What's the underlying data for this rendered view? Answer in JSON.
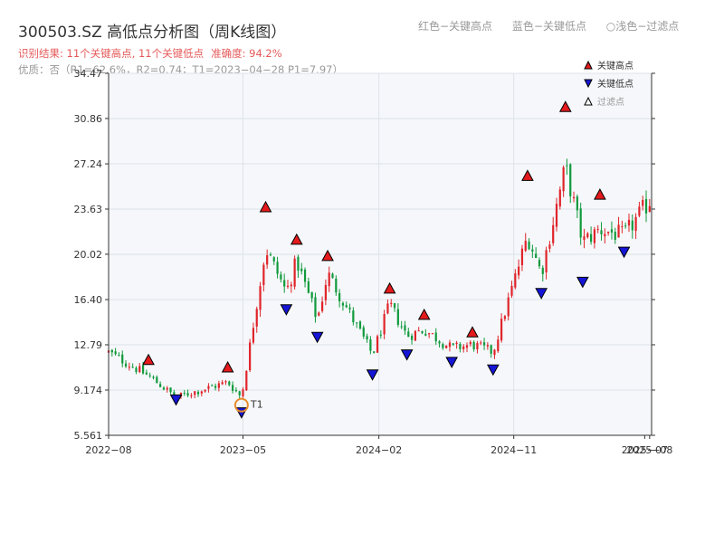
{
  "header": {
    "title": "300503.SZ 高低点分析图（周K线图）",
    "legend_high": "红色−关键高点",
    "legend_low": "蓝色−关键低点",
    "legend_filtered": "○浅色−过滤点",
    "result": "识别结果: 11个关键高点, 11个关键低点",
    "accuracy": "准确度: 94.2%",
    "quality": "优质：否（R1=62.6%，R2=0.74；T1=2023−04−28 P1=7.97）"
  },
  "colors": {
    "up": "#e0242a",
    "down": "#109a3c",
    "high_marker": "#e41a1c",
    "low_marker": "#1515d6",
    "filtered_marker": "#e88a2a",
    "grid": "#dde3ea",
    "plot_bg": "#f5f7fa"
  },
  "chart_data": {
    "type": "candlestick",
    "timeframe": "weekly",
    "y_ticks": [
      "5.561",
      "9.174",
      "12.79",
      "16.40",
      "20.02",
      "23.63",
      "27.24",
      "30.86",
      "34.47"
    ],
    "ylim": [
      5.561,
      34.47
    ],
    "x_ticks": [
      "2022−08",
      "2023−05",
      "2024−02",
      "2024−11",
      "2025−07",
      "2025−08"
    ],
    "xlim": [
      "2022-08-01",
      "2025-08-08"
    ],
    "legend": [
      "关键高点",
      "关键低点",
      "过滤点"
    ],
    "annotation": {
      "label": "T1",
      "date": "2023-04-28",
      "price": 7.97
    },
    "key_highs": [
      {
        "date": "2022-10-21",
        "price": 11.0
      },
      {
        "date": "2023-03-31",
        "price": 10.4
      },
      {
        "date": "2023-06-16",
        "price": 23.2
      },
      {
        "date": "2023-08-18",
        "price": 20.6
      },
      {
        "date": "2023-10-20",
        "price": 19.3
      },
      {
        "date": "2024-02-23",
        "price": 16.7
      },
      {
        "date": "2024-05-03",
        "price": 14.6
      },
      {
        "date": "2024-08-09",
        "price": 13.2
      },
      {
        "date": "2024-11-29",
        "price": 25.7
      },
      {
        "date": "2025-02-14",
        "price": 31.2
      },
      {
        "date": "2025-04-25",
        "price": 24.2
      }
    ],
    "key_lows": [
      {
        "date": "2022-12-16",
        "price": 9.0
      },
      {
        "date": "2023-04-28",
        "price": 7.97
      },
      {
        "date": "2023-07-28",
        "price": 16.2
      },
      {
        "date": "2023-09-29",
        "price": 14.0
      },
      {
        "date": "2024-01-19",
        "price": 11.0
      },
      {
        "date": "2024-03-29",
        "price": 12.6
      },
      {
        "date": "2024-06-28",
        "price": 12.0
      },
      {
        "date": "2024-09-20",
        "price": 11.4
      },
      {
        "date": "2024-12-27",
        "price": 17.5
      },
      {
        "date": "2025-03-21",
        "price": 18.4
      },
      {
        "date": "2025-06-13",
        "price": 20.8
      }
    ],
    "close_path": [
      [
        "2022-08-01",
        12.2
      ],
      [
        "2022-10-21",
        10.3
      ],
      [
        "2022-12-16",
        8.6
      ],
      [
        "2023-03-31",
        9.8
      ],
      [
        "2023-04-28",
        8.6
      ],
      [
        "2023-06-16",
        20.5
      ],
      [
        "2023-07-28",
        17.0
      ],
      [
        "2023-08-18",
        19.5
      ],
      [
        "2023-09-29",
        14.8
      ],
      [
        "2023-10-20",
        18.5
      ],
      [
        "2024-01-19",
        12.0
      ],
      [
        "2024-02-23",
        16.0
      ],
      [
        "2024-03-29",
        13.5
      ],
      [
        "2024-05-03",
        14.0
      ],
      [
        "2024-06-28",
        12.5
      ],
      [
        "2024-08-09",
        12.8
      ],
      [
        "2024-09-20",
        12.2
      ],
      [
        "2024-11-29",
        21.5
      ],
      [
        "2024-12-27",
        18.5
      ],
      [
        "2025-02-14",
        27.0
      ],
      [
        "2025-03-21",
        21.0
      ],
      [
        "2025-04-25",
        22.0
      ],
      [
        "2025-06-13",
        21.5
      ],
      [
        "2025-08-08",
        24.5
      ]
    ]
  }
}
